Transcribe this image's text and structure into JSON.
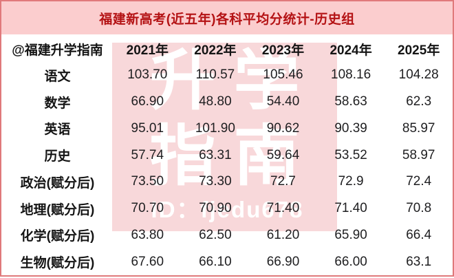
{
  "title": "福建新高考(近五年)各科平均分统计-历史组",
  "watermark": {
    "line1": "升学",
    "line2": "指南",
    "id_text": "ID：fjedu678"
  },
  "colors": {
    "title_bar_bg": "#fbcdce",
    "title_text": "#b41214",
    "outer_border": "#e0797b",
    "watermark_bg": "#f8d8da",
    "watermark_text": "#ffffff",
    "body_text": "#1e1e20"
  },
  "table": {
    "header": [
      "@福建升学指南",
      "2021年",
      "2022年",
      "2023年",
      "2024年",
      "2025年"
    ],
    "rows": [
      {
        "label": "语文",
        "values": [
          "103.70",
          "110.57",
          "105.46",
          "108.16",
          "104.28"
        ]
      },
      {
        "label": "数学",
        "values": [
          "66.90",
          "48.80",
          "54.40",
          "58.63",
          "62.3"
        ]
      },
      {
        "label": "英语",
        "values": [
          "95.01",
          "101.90",
          "90.62",
          "90.39",
          "85.97"
        ]
      },
      {
        "label": "历史",
        "values": [
          "57.74",
          "63.31",
          "59.64",
          "53.52",
          "58.97"
        ]
      },
      {
        "label": "政治(赋分后)",
        "values": [
          "73.50",
          "73.30",
          "72.7",
          "72.9",
          "72.4"
        ]
      },
      {
        "label": "地理(赋分后)",
        "values": [
          "70.70",
          "70.90",
          "71.40",
          "71.40",
          "70.8"
        ]
      },
      {
        "label": "化学(赋分后)",
        "values": [
          "63.80",
          "62.50",
          "61.20",
          "65.90",
          "66.4"
        ]
      },
      {
        "label": "生物(赋分后)",
        "values": [
          "67.60",
          "66.10",
          "66.90",
          "66.00",
          "63.1"
        ]
      }
    ]
  },
  "chart_data": {
    "type": "table",
    "title": "福建新高考(近五年)各科平均分统计-历史组",
    "categories": [
      "2021年",
      "2022年",
      "2023年",
      "2024年",
      "2025年"
    ],
    "series": [
      {
        "name": "语文",
        "values": [
          103.7,
          110.57,
          105.46,
          108.16,
          104.28
        ]
      },
      {
        "name": "数学",
        "values": [
          66.9,
          48.8,
          54.4,
          58.63,
          62.3
        ]
      },
      {
        "name": "英语",
        "values": [
          95.01,
          101.9,
          90.62,
          90.39,
          85.97
        ]
      },
      {
        "name": "历史",
        "values": [
          57.74,
          63.31,
          59.64,
          53.52,
          58.97
        ]
      },
      {
        "name": "政治(赋分后)",
        "values": [
          73.5,
          73.3,
          72.7,
          72.9,
          72.4
        ]
      },
      {
        "name": "地理(赋分后)",
        "values": [
          70.7,
          70.9,
          71.4,
          71.4,
          70.8
        ]
      },
      {
        "name": "化学(赋分后)",
        "values": [
          63.8,
          62.5,
          61.2,
          65.9,
          66.4
        ]
      },
      {
        "name": "生物(赋分后)",
        "values": [
          67.6,
          66.1,
          66.9,
          66.0,
          63.1
        ]
      }
    ]
  }
}
